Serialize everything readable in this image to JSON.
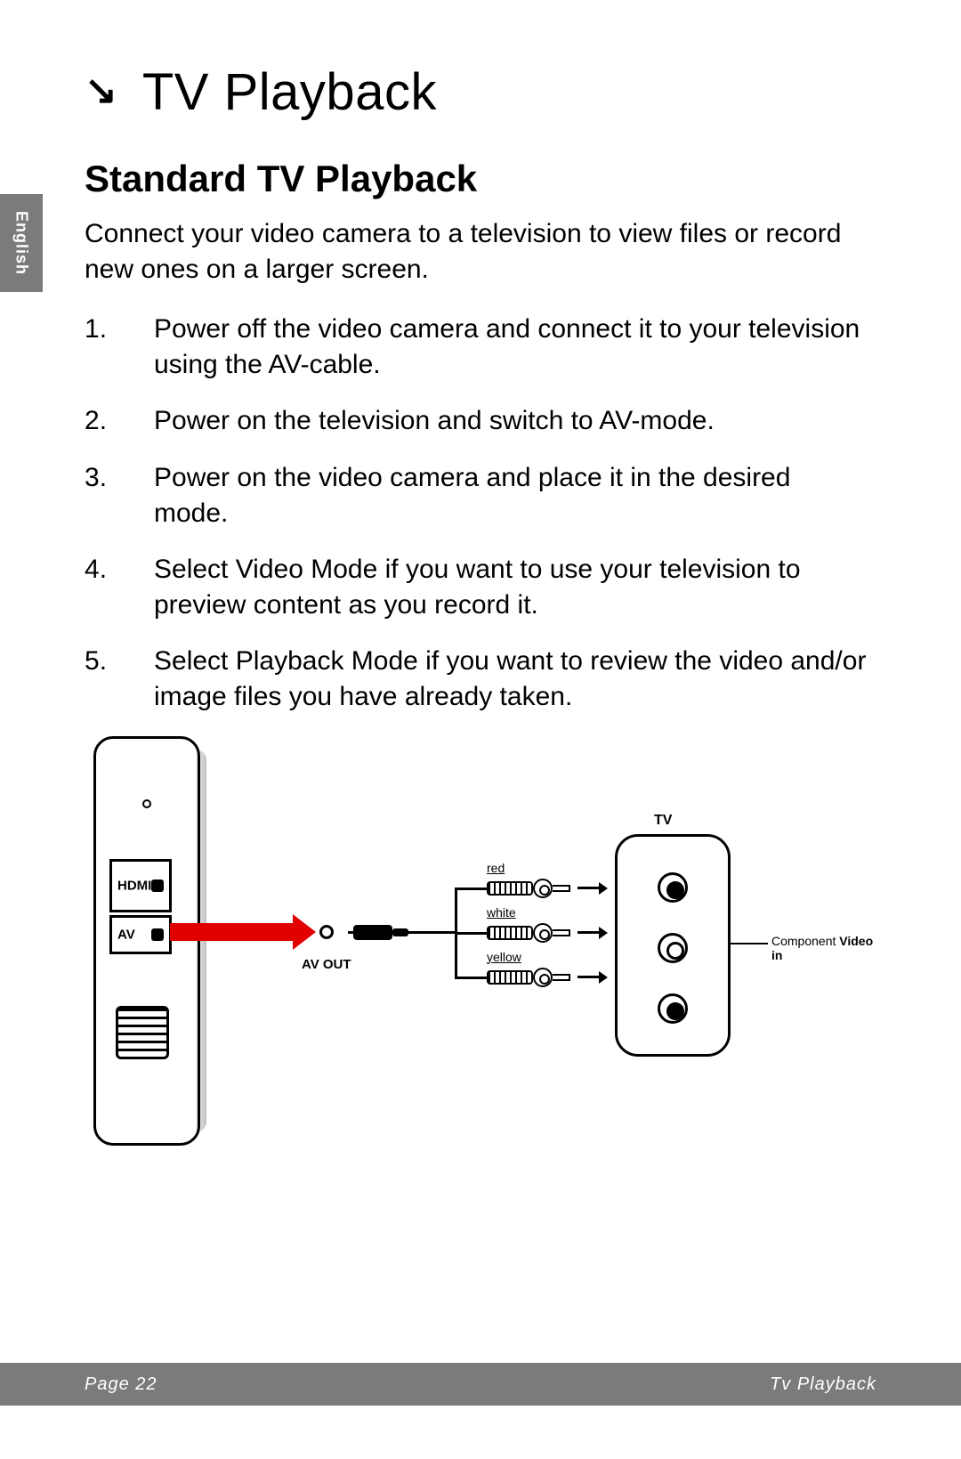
{
  "language_tab": "English",
  "chapter": {
    "icon": "↘",
    "title": "TV Playback"
  },
  "section_title": "Standard TV Playback",
  "intro": "Connect your video camera to a television to view files or record new ones on a larger screen.",
  "steps": [
    "Power off the video camera and connect it to your television using the AV-cable.",
    "Power on the television and switch to AV-mode.",
    "Power on the video camera and place it in the desired mode.",
    "Select Video Mode if you want to use your television to preview content as you record it.",
    "Select Playback Mode if you want to review the video and/or image files you have already taken."
  ],
  "diagram": {
    "camera_ports": {
      "hdmi": "HDMI",
      "av": "AV"
    },
    "av_out_label": "AV OUT",
    "tv_label": "TV",
    "component_label": "Component Video in",
    "rca": {
      "red": "red",
      "white": "white",
      "yellow": "yellow"
    },
    "colors": {
      "arrow": "#e00000",
      "line": "#000000",
      "footer_bg": "#7b7b7b",
      "footer_fg": "#ffffff"
    }
  },
  "footer": {
    "left": "Page 22",
    "right": "Tv Playback"
  }
}
